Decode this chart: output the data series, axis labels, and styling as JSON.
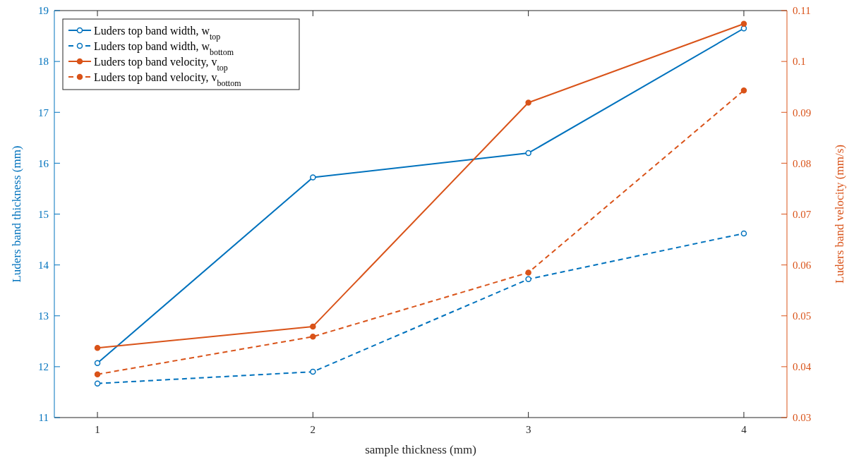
{
  "chart_data": {
    "type": "line",
    "xlabel": "sample thickness (mm)",
    "ylabel": "Luders band thickness (mm)",
    "y2label": "Luders band velocity (mm/s)",
    "x": [
      1,
      2,
      3,
      4
    ],
    "xlim": [
      0.8,
      4.2
    ],
    "xticks": [
      1,
      2,
      3,
      4
    ],
    "ylim": [
      11,
      19
    ],
    "yticks": [
      11,
      12,
      13,
      14,
      15,
      16,
      17,
      18,
      19
    ],
    "y2lim": [
      0.03,
      0.11
    ],
    "y2ticks": [
      0.03,
      0.04,
      0.05,
      0.06,
      0.07,
      0.08,
      0.09,
      0.1,
      0.11
    ],
    "legend": "top left",
    "grid": false,
    "series": [
      {
        "name": "Luders top band width, w$_{top}$",
        "color": "#0072bd",
        "values": [
          12.07,
          15.72,
          16.2,
          18.65
        ],
        "marker": "circle",
        "line_style": "solid"
      },
      {
        "name": "Luders top band width, w$_{bottom}$",
        "color": "#0072bd",
        "values": [
          11.67,
          11.9,
          13.72,
          14.62
        ],
        "marker": "circle",
        "line_style": "dashed"
      },
      {
        "name": "Luders top band velocity, v$_{top}$",
        "color": "#d95319",
        "values": [
          0.0437,
          0.0479,
          0.0919,
          0.1074
        ],
        "marker": "circle",
        "line_style": "solid",
        "axis": "y2"
      },
      {
        "name": "Luders top band velocity, v$_{bottom}$",
        "color": "#d95319",
        "values": [
          0.0385,
          0.0459,
          0.0585,
          0.0943
        ],
        "marker": "circle",
        "line_style": "dashed",
        "axis": "y2"
      }
    ]
  }
}
